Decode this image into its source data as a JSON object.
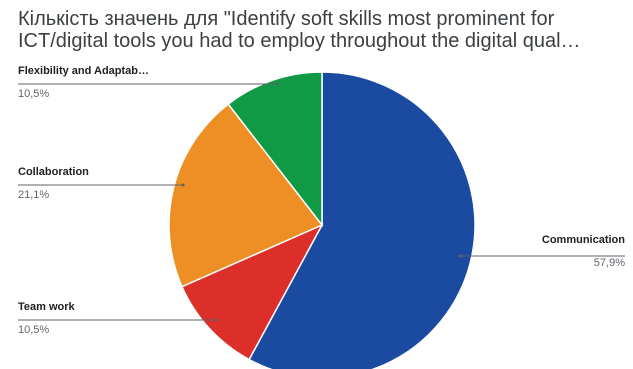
{
  "chart_data": {
    "type": "pie",
    "title": "Кількість значень для \"Identify soft skills most prominent for\nICT/digital tools you had to employ throughout the digital qual…",
    "slices": [
      {
        "label": "Communication",
        "percent_label": "57,9%",
        "value": 57.9,
        "color": "#1a4ba0"
      },
      {
        "label": "Team work",
        "percent_label": "10,5%",
        "value": 10.5,
        "color": "#dc2f2a"
      },
      {
        "label": "Collaboration",
        "percent_label": "21,1%",
        "value": 21.1,
        "color": "#ee8f25"
      },
      {
        "label": "Flexibility and Adaptab…",
        "percent_label": "10,5%",
        "value": 10.5,
        "color": "#119a46"
      }
    ],
    "start_angle_deg": 0,
    "direction": "clockwise",
    "legend": "none",
    "label_style": "outside-leader-lines"
  }
}
